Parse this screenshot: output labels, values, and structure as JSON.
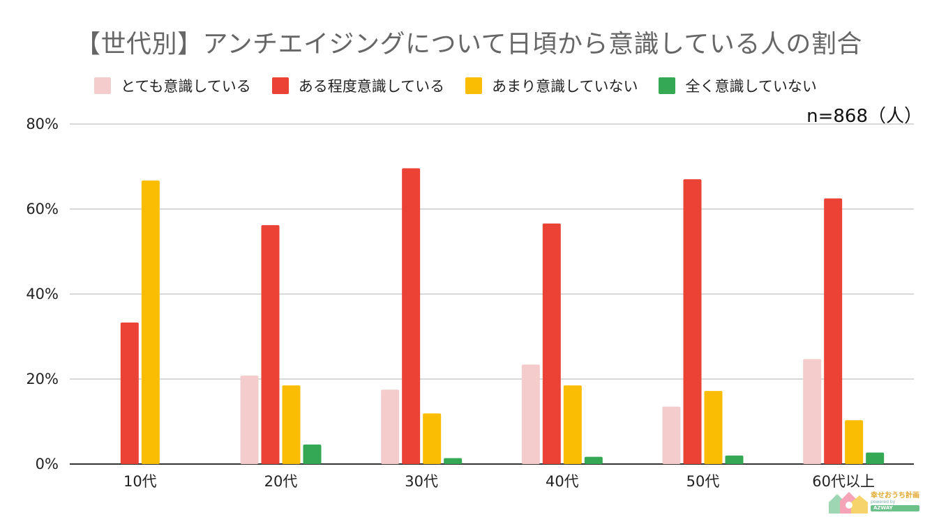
{
  "chart_data": {
    "type": "bar",
    "title": "【世代別】アンチエイジングについて日頃から意識している人の割合",
    "note": "n=868（人）",
    "categories": [
      "10代",
      "20代",
      "30代",
      "40代",
      "50代",
      "60代以上"
    ],
    "series": [
      {
        "name": "とても意識している",
        "color": "#f4cccc",
        "values": [
          0,
          20.8,
          17.5,
          23.4,
          13.5,
          24.7
        ]
      },
      {
        "name": "ある程度意識している",
        "color": "#ea4335",
        "values": [
          33.3,
          56.2,
          69.6,
          56.6,
          67.0,
          62.5
        ]
      },
      {
        "name": "あまり意識していない",
        "color": "#fbbc04",
        "values": [
          66.7,
          18.5,
          11.9,
          18.5,
          17.2,
          10.3
        ]
      },
      {
        "name": "全く意識していない",
        "color": "#34a853",
        "values": [
          0,
          4.6,
          1.4,
          1.7,
          2.0,
          2.7
        ]
      }
    ],
    "yticks": [
      "0%",
      "20%",
      "40%",
      "60%",
      "80%"
    ],
    "ylim": [
      0,
      80
    ],
    "grid": true,
    "legend_position": "top"
  },
  "logo": {
    "main": "幸せおうち計画",
    "sub": "powered by",
    "brand": "AZWAY"
  }
}
